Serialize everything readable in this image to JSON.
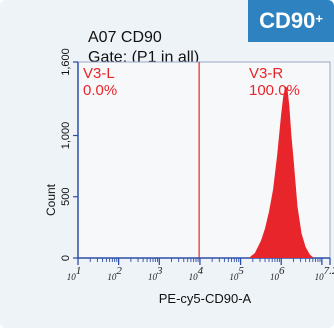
{
  "chart_data": {
    "type": "histogram",
    "title_line1": "A07 CD90",
    "title_line2": "Gate: (P1 in all)",
    "badge": {
      "text": "CD90",
      "superscript": "+"
    },
    "xlabel": "PE-cy5-CD90-A",
    "ylabel": "Count",
    "x_scale": "log",
    "x_range_log10": [
      1,
      7.2
    ],
    "x_tick_labels": [
      "10^1",
      "10^2",
      "10^3",
      "10^4",
      "10^5",
      "10^6",
      "10^7.2"
    ],
    "ylim": [
      0,
      1600
    ],
    "y_ticks": [
      0,
      500,
      1000,
      1600
    ],
    "y_tick_labels": [
      "0",
      "500",
      "1,000",
      "1,600"
    ],
    "gate_divider_log10": 3.98,
    "gates": [
      {
        "name": "V3-L",
        "percent": "0.0%"
      },
      {
        "name": "V3-R",
        "percent": "100.0%"
      }
    ],
    "histogram": {
      "color": "#e8252b",
      "x_log10": [
        5.2,
        5.35,
        5.5,
        5.6,
        5.7,
        5.8,
        5.9,
        6.0,
        6.05,
        6.1,
        6.15,
        6.2,
        6.25,
        6.3,
        6.35,
        6.4,
        6.5,
        6.6,
        6.7,
        6.8
      ],
      "counts": [
        0,
        40,
        140,
        240,
        380,
        560,
        840,
        1180,
        1320,
        1400,
        1390,
        1240,
        1000,
        820,
        620,
        420,
        200,
        90,
        30,
        0
      ]
    },
    "colors": {
      "axis": "#2e4fa8",
      "gate": "#e8252b",
      "badge": "#2e82c0"
    }
  }
}
